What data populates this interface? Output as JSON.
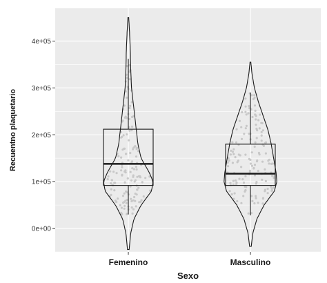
{
  "chart_data": {
    "type": "violin",
    "title": "",
    "xlabel": "Sexo",
    "ylabel": "Recuentno plaquetario",
    "categories": [
      "Femenino",
      "Masculino"
    ],
    "ylim": [
      -50000,
      470000
    ],
    "yticks": [
      0,
      100000,
      200000,
      300000,
      400000
    ],
    "ytick_labels": [
      "0e+00",
      "1e+05",
      "2e+05",
      "3e+05",
      "4e+05"
    ],
    "grid": true,
    "legend": "none",
    "colors": {
      "panel": "#ebebeb",
      "grid": "#ffffff",
      "points": "#c8c8c8",
      "outline": "#1a1a1a"
    },
    "series": [
      {
        "category": "Femenino",
        "violin_min": -45000,
        "violin_max": 450000,
        "box": {
          "q1": 92000,
          "median": 138000,
          "q3": 212000,
          "whisker_low": 30000,
          "whisker_high": 362000
        },
        "density": [
          [
            -45000,
            0.02
          ],
          [
            -10000,
            0.06
          ],
          [
            20000,
            0.14
          ],
          [
            50000,
            0.32
          ],
          [
            80000,
            0.58
          ],
          [
            100000,
            0.62
          ],
          [
            120000,
            0.52
          ],
          [
            150000,
            0.32
          ],
          [
            180000,
            0.24
          ],
          [
            210000,
            0.2
          ],
          [
            240000,
            0.16
          ],
          [
            270000,
            0.12
          ],
          [
            300000,
            0.08
          ],
          [
            340000,
            0.06
          ],
          [
            380000,
            0.05
          ],
          [
            420000,
            0.03
          ],
          [
            450000,
            0.01
          ]
        ]
      },
      {
        "category": "Masculino",
        "violin_min": -38000,
        "violin_max": 355000,
        "box": {
          "q1": 92000,
          "median": 117000,
          "q3": 180000,
          "whisker_low": 28000,
          "whisker_high": 290000
        },
        "density": [
          [
            -38000,
            0.02
          ],
          [
            -10000,
            0.06
          ],
          [
            20000,
            0.16
          ],
          [
            50000,
            0.34
          ],
          [
            80000,
            0.6
          ],
          [
            100000,
            0.66
          ],
          [
            120000,
            0.64
          ],
          [
            150000,
            0.58
          ],
          [
            180000,
            0.52
          ],
          [
            210000,
            0.44
          ],
          [
            240000,
            0.32
          ],
          [
            270000,
            0.2
          ],
          [
            300000,
            0.1
          ],
          [
            330000,
            0.04
          ],
          [
            355000,
            0.01
          ]
        ]
      }
    ]
  }
}
